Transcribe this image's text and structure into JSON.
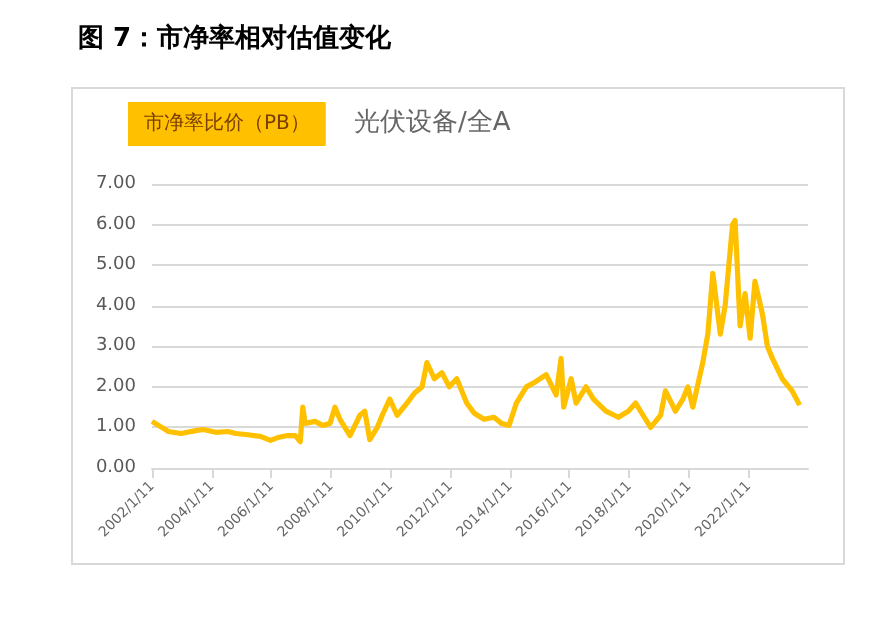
{
  "chart_data": {
    "type": "line",
    "title": "图 7：市净率相对估值变化",
    "subtitle": "光伏设备/全A",
    "x": [
      "2002-01-11",
      "2002-04",
      "2002-08",
      "2003-01",
      "2003-07",
      "2003-10",
      "2004-03",
      "2004-08",
      "2004-11",
      "2005-04",
      "2005-09",
      "2006-01",
      "2006-04",
      "2006-08",
      "2006-11",
      "2007-01",
      "2007-02",
      "2007-03",
      "2007-07",
      "2007-10",
      "2008-01",
      "2008-03",
      "2008-05",
      "2008-09",
      "2009-01",
      "2009-03",
      "2009-05",
      "2009-08",
      "2009-10",
      "2010-01",
      "2010-04",
      "2010-08",
      "2010-11",
      "2011-02",
      "2011-04",
      "2011-07",
      "2011-10",
      "2012-01",
      "2012-04",
      "2012-08",
      "2012-11",
      "2013-03",
      "2013-07",
      "2013-10",
      "2014-01",
      "2014-04",
      "2014-08",
      "2014-11",
      "2015-04",
      "2015-08",
      "2015-10",
      "2015-11",
      "2016-02",
      "2016-04",
      "2016-08",
      "2016-11",
      "2017-04",
      "2017-09",
      "2018-01",
      "2018-04",
      "2018-07",
      "2018-10",
      "2019-02",
      "2019-04",
      "2019-08",
      "2019-11",
      "2020-01",
      "2020-03",
      "2020-07",
      "2020-09",
      "2020-11",
      "2021-02",
      "2021-04",
      "2021-07",
      "2021-08",
      "2021-10",
      "2021-12",
      "2022-02",
      "2022-04",
      "2022-07",
      "2022-09",
      "2022-11",
      "2023-03",
      "2023-07",
      "2023-10"
    ],
    "series": [
      {
        "name": "市净率比价（PB）",
        "color": "#ffc000",
        "values": [
          1.15,
          1.05,
          0.9,
          0.85,
          0.92,
          0.95,
          0.88,
          0.9,
          0.85,
          0.82,
          0.78,
          0.68,
          0.75,
          0.8,
          0.8,
          0.65,
          1.5,
          1.1,
          1.15,
          1.05,
          1.1,
          1.5,
          1.2,
          0.8,
          1.3,
          1.4,
          0.7,
          1.0,
          1.3,
          1.7,
          1.3,
          1.6,
          1.85,
          2.0,
          2.6,
          2.2,
          2.35,
          2.0,
          2.2,
          1.6,
          1.35,
          1.2,
          1.25,
          1.1,
          1.05,
          1.6,
          2.0,
          2.1,
          2.3,
          1.8,
          2.7,
          1.5,
          2.2,
          1.6,
          2.0,
          1.7,
          1.4,
          1.25,
          1.4,
          1.6,
          1.3,
          1.0,
          1.3,
          1.9,
          1.4,
          1.7,
          2.0,
          1.5,
          2.6,
          3.3,
          4.8,
          3.3,
          4.0,
          6.0,
          6.1,
          3.5,
          4.3,
          3.2,
          4.6,
          3.8,
          3.0,
          2.7,
          2.2,
          1.9,
          1.55
        ]
      }
    ],
    "xlim": [
      "2002-01-11",
      "2024-01-11"
    ],
    "xticks": [
      {
        "value": "2002-01-11",
        "label": "2002/1/11"
      },
      {
        "value": "2004-01-11",
        "label": "2004/1/11"
      },
      {
        "value": "2006-01-11",
        "label": "2006/1/11"
      },
      {
        "value": "2008-01-11",
        "label": "2008/1/11"
      },
      {
        "value": "2010-01-11",
        "label": "2010/1/11"
      },
      {
        "value": "2012-01-11",
        "label": "2012/1/11"
      },
      {
        "value": "2014-01-11",
        "label": "2014/1/11"
      },
      {
        "value": "2016-01-11",
        "label": "2016/1/11"
      },
      {
        "value": "2018-01-11",
        "label": "2018/1/11"
      },
      {
        "value": "2020-01-11",
        "label": "2020/1/11"
      },
      {
        "value": "2022-01-11",
        "label": "2022/1/11"
      }
    ],
    "ylim": [
      0,
      7
    ],
    "yticks": [
      {
        "value": 0,
        "label": "0.00"
      },
      {
        "value": 1,
        "label": "1.00"
      },
      {
        "value": 2,
        "label": "2.00"
      },
      {
        "value": 3,
        "label": "3.00"
      },
      {
        "value": 4,
        "label": "4.00"
      },
      {
        "value": 5,
        "label": "5.00"
      },
      {
        "value": 6,
        "label": "6.00"
      },
      {
        "value": 7,
        "label": "7.00"
      }
    ],
    "grid": "y",
    "legend": "top left",
    "marker": "none",
    "line_style": "solid"
  }
}
